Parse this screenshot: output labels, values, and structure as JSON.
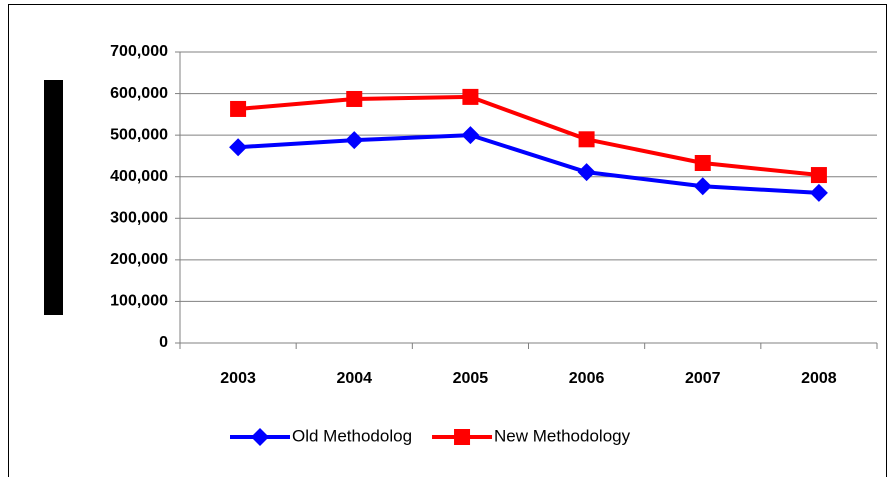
{
  "chart_data": {
    "type": "line",
    "categories": [
      "2003",
      "2004",
      "2005",
      "2006",
      "2007",
      "2008"
    ],
    "series": [
      {
        "name": "Old Methodolog",
        "color": "#0000ff",
        "marker": "diamond",
        "values": [
          471000,
          488000,
          500000,
          411000,
          377000,
          361000
        ]
      },
      {
        "name": "New Methodology",
        "color": "#ff0000",
        "marker": "square",
        "values": [
          563000,
          587000,
          592000,
          490000,
          433000,
          404000
        ]
      }
    ],
    "ylim": [
      0,
      700000
    ],
    "yticks": [
      0,
      {
        "value": 100000,
        "label": "100,000"
      },
      {
        "value": 200000,
        "label": "200,000"
      },
      {
        "value": 300000,
        "label": "300,000"
      },
      {
        "value": 400000,
        "label": "400,000"
      },
      {
        "value": 500000,
        "label": "500,000"
      },
      {
        "value": 600000,
        "label": "600,000"
      },
      {
        "value": 700000,
        "label": "700,000"
      }
    ],
    "grid": true,
    "legend": "bottom"
  }
}
